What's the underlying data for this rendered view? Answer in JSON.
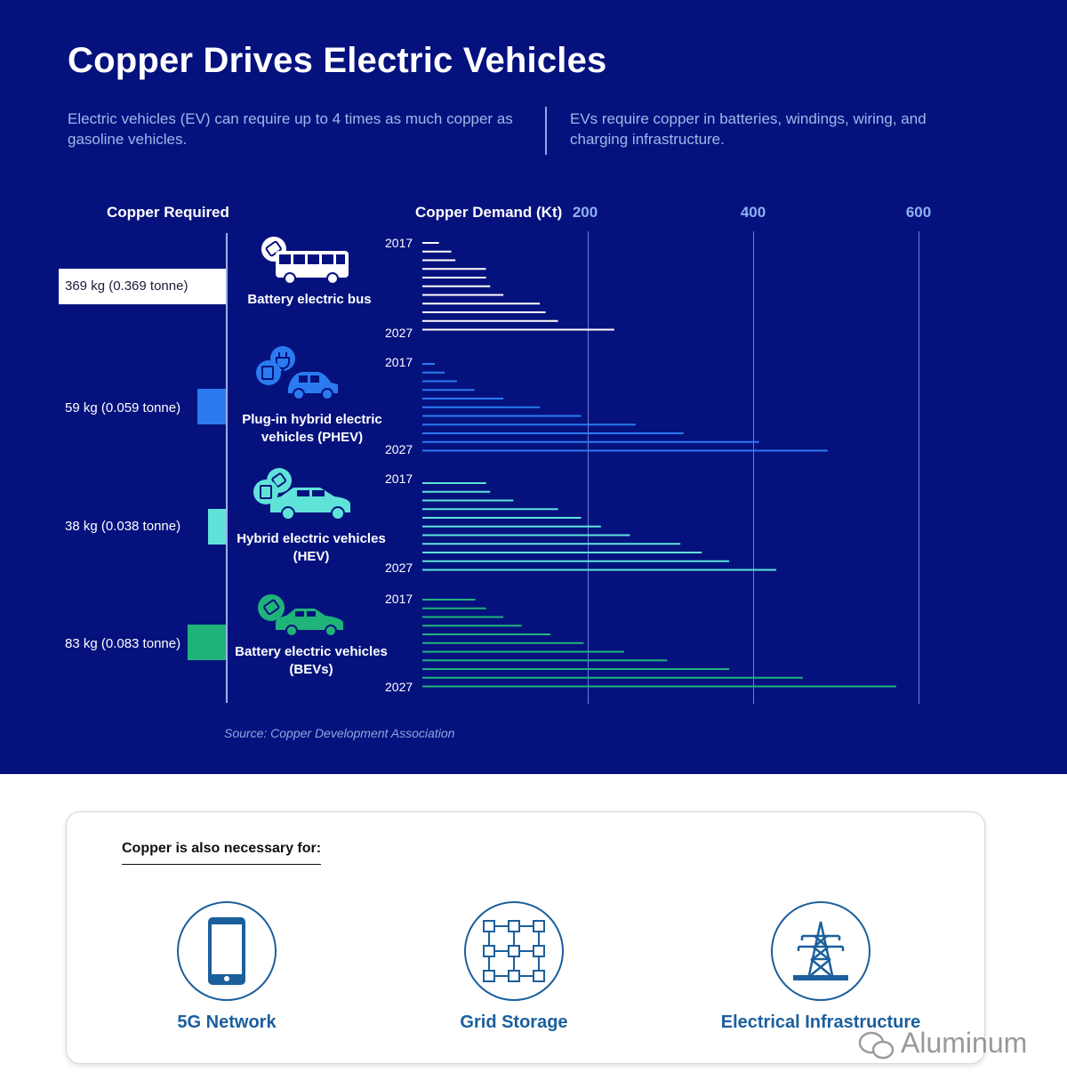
{
  "title": "Copper Drives Electric Vehicles",
  "intro_left": "Electric vehicles (EV) can require up to 4 times as much copper as gasoline vehicles.",
  "intro_right": "EVs require copper in batteries, windings, wiring, and charging infrastructure.",
  "source": "Source: Copper Development Association",
  "footer": {
    "heading": "Copper is also necessary for:",
    "items": [
      {
        "label": "5G Network",
        "icon": "smartphone-icon"
      },
      {
        "label": "Grid Storage",
        "icon": "grid-storage-icon"
      },
      {
        "label": "Electrical Infrastructure",
        "icon": "transmission-tower-icon"
      }
    ]
  },
  "watermark": "Aluminum",
  "colors": {
    "background": "#05127e",
    "bus": "#ffffff",
    "phev": "#2b7bf0",
    "hev": "#5fe3d9",
    "bev": "#1fb37a"
  },
  "chart_data": {
    "type": "bar",
    "orientation": "horizontal",
    "left_header": "Copper Required",
    "demand_header": "Copper Demand (Kt)",
    "axis_ticks": [
      200,
      400,
      600
    ],
    "xlim": [
      0,
      600
    ],
    "years": [
      "2017",
      "2018",
      "2019",
      "2020",
      "2021",
      "2022",
      "2023",
      "2024",
      "2025",
      "2026",
      "2027"
    ],
    "year_start_label": "2017",
    "year_end_label": "2027",
    "series": [
      {
        "key": "bus",
        "name": "Battery electric bus",
        "required": "369 kg (0.369 tonne)",
        "required_tonnes": 0.369,
        "color": "#ffffff",
        "values": [
          20,
          35,
          40,
          77,
          77,
          82,
          98,
          142,
          149,
          164,
          232
        ]
      },
      {
        "key": "phev",
        "name": "Plug-in hybrid electric vehicles (PHEV)",
        "required": "59 kg (0.059 tonne)",
        "required_tonnes": 0.059,
        "color": "#2b7bf0",
        "values": [
          15,
          27,
          42,
          63,
          98,
          142,
          192,
          258,
          316,
          407,
          490
        ]
      },
      {
        "key": "hev",
        "name": "Hybrid electric vehicles (HEV)",
        "required": "38 kg (0.038 tonne)",
        "required_tonnes": 0.038,
        "color": "#5fe3d9",
        "values": [
          77,
          82,
          110,
          164,
          192,
          216,
          251,
          312,
          338,
          371,
          428
        ]
      },
      {
        "key": "bev",
        "name": "Battery electric vehicles (BEVs)",
        "required": "83 kg (0.083 tonne)",
        "required_tonnes": 0.083,
        "color": "#1fb37a",
        "values": [
          64,
          77,
          98,
          120,
          155,
          195,
          244,
          296,
          371,
          460,
          573
        ]
      }
    ]
  }
}
